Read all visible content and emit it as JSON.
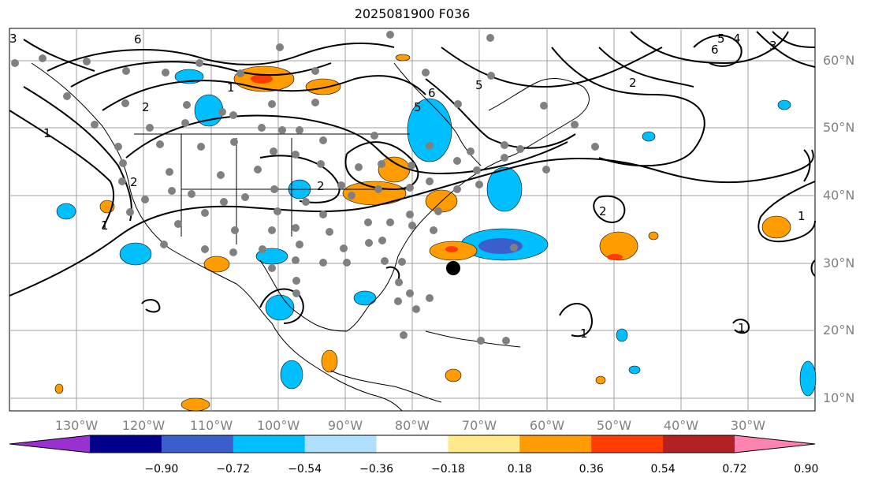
{
  "title": "2025081900 F036",
  "map": {
    "lon_labels": [
      "130°W",
      "120°W",
      "110°W",
      "100°W",
      "90°W",
      "80°W",
      "70°W",
      "60°W",
      "50°W",
      "40°W",
      "30°W"
    ],
    "lat_labels": [
      "60°N",
      "50°N",
      "40°N",
      "30°N",
      "20°N",
      "10°N"
    ],
    "contour_labels": [
      "6",
      "1",
      "2",
      "1",
      "2",
      "5",
      "6",
      "5",
      "2",
      "4",
      "5",
      "6",
      "3",
      "2",
      "1",
      "2",
      "1",
      "1",
      "1",
      "3"
    ]
  },
  "colorbar": {
    "ticks": [
      "−0.90",
      "−0.72",
      "−0.54",
      "−0.36",
      "−0.18",
      "0.18",
      "0.36",
      "0.54",
      "0.72",
      "0.90"
    ],
    "colors": [
      "#9b30d0",
      "#00008b",
      "#3a5fcd",
      "#00bfff",
      "#afe1ff",
      "#ffffff",
      "#ffe98a",
      "#ff9d00",
      "#ff3d00",
      "#b22222",
      "#ff83b0"
    ]
  },
  "colors": {
    "neg_light": "#afe1ff",
    "neg_mid": "#00bfff",
    "neg_dark": "#3a5fcd",
    "pos_light": "#ffe98a",
    "pos_mid": "#ff9d00",
    "pos_dark": "#ff3d00",
    "grid": "#a0a0a0",
    "station": "#808080",
    "contour": "#000000"
  }
}
